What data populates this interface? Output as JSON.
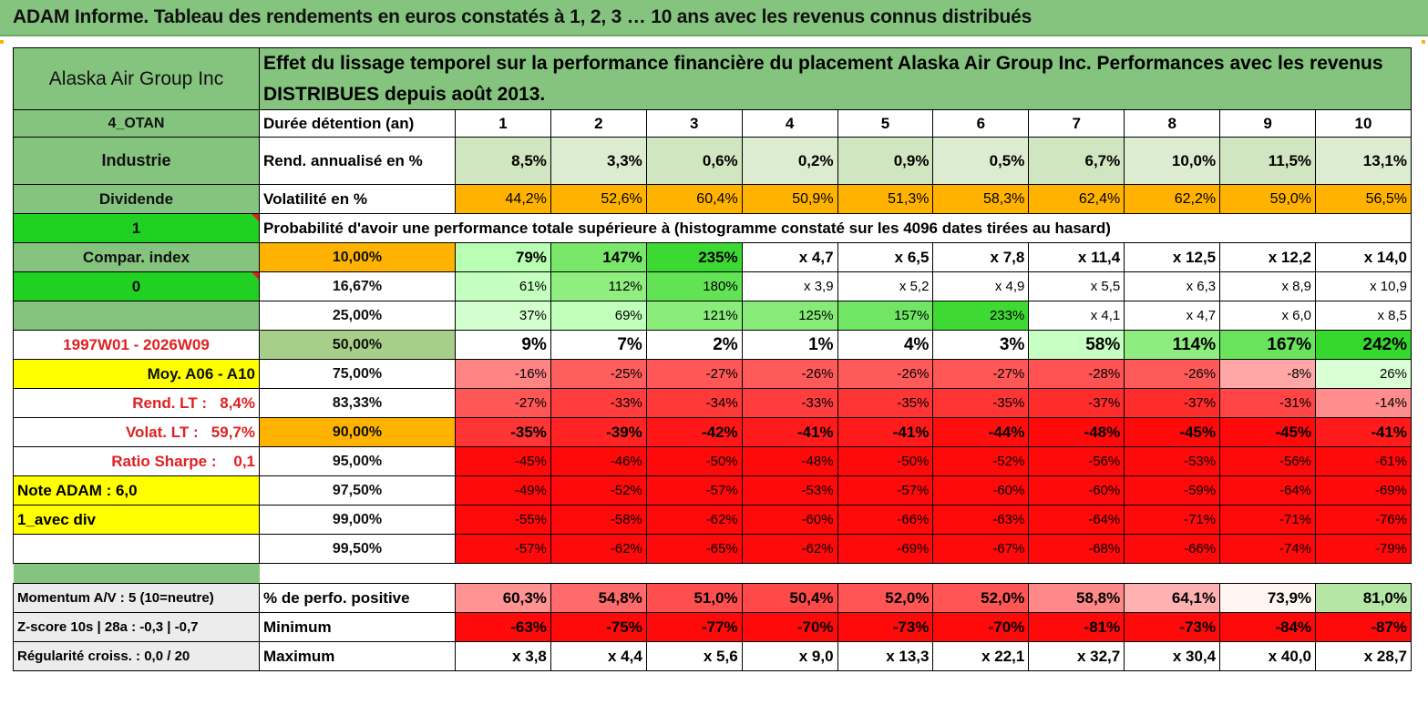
{
  "page_title": "ADAM Informe. Tableau des rendements en euros constatés à 1, 2, 3 … 10 ans avec les revenus connus distribués",
  "header": {
    "company": "Alaska Air Group Inc",
    "description": "Effet du lissage temporel sur la performance financière du placement Alaska Air Group Inc. Performances avec les revenus DISTRIBUES depuis août 2013."
  },
  "years_row": {
    "left": "4_OTAN",
    "label": "Durée détention (an)",
    "values": [
      "1",
      "2",
      "3",
      "4",
      "5",
      "6",
      "7",
      "8",
      "9",
      "10"
    ]
  },
  "rend_row": {
    "left": "Industrie",
    "label": "Rend. annualisé en %",
    "values": [
      "8,5%",
      "3,3%",
      "0,6%",
      "0,2%",
      "0,9%",
      "0,5%",
      "6,7%",
      "10,0%",
      "11,5%",
      "13,1%"
    ]
  },
  "vol_row": {
    "left": "Dividende",
    "label": "Volatilité en %",
    "values": [
      "44,2%",
      "52,6%",
      "60,4%",
      "50,9%",
      "51,3%",
      "58,3%",
      "62,4%",
      "62,2%",
      "59,0%",
      "56,5%"
    ]
  },
  "prob_row": {
    "left": "1",
    "label": "Probabilité d'avoir une performance totale supérieure à (histogramme constaté sur les 4096 dates tirées au hasard)"
  },
  "quantiles": [
    {
      "left": "Compar. index",
      "pct": "10,00%",
      "values": [
        "79%",
        "147%",
        "235%",
        "x 4,7",
        "x 6,5",
        "x 7,8",
        "x 11,4",
        "x 12,5",
        "x 12,2",
        "x 14,0"
      ]
    },
    {
      "left": "0",
      "pct": "16,67%",
      "values": [
        "61%",
        "112%",
        "180%",
        "x 3,9",
        "x 5,2",
        "x 4,9",
        "x 5,5",
        "x 6,3",
        "x 8,9",
        "x 10,9"
      ]
    },
    {
      "left": "",
      "pct": "25,00%",
      "values": [
        "37%",
        "69%",
        "121%",
        "125%",
        "157%",
        "233%",
        "x 4,1",
        "x 4,7",
        "x 6,0",
        "x 8,5"
      ]
    },
    {
      "left": "1997W01 - 2026W09",
      "pct": "50,00%",
      "values": [
        "9%",
        "7%",
        "2%",
        "1%",
        "4%",
        "3%",
        "58%",
        "114%",
        "167%",
        "242%"
      ]
    },
    {
      "left": "Moy. A06 - A10",
      "pct": "75,00%",
      "values": [
        "-16%",
        "-25%",
        "-27%",
        "-26%",
        "-26%",
        "-27%",
        "-28%",
        "-26%",
        "-8%",
        "26%"
      ]
    },
    {
      "left": "Rend. LT :   8,4%",
      "pct": "83,33%",
      "values": [
        "-27%",
        "-33%",
        "-34%",
        "-33%",
        "-35%",
        "-35%",
        "-37%",
        "-37%",
        "-31%",
        "-14%"
      ]
    },
    {
      "left": "Volat. LT :   59,7%",
      "pct": "90,00%",
      "values": [
        "-35%",
        "-39%",
        "-42%",
        "-41%",
        "-41%",
        "-44%",
        "-48%",
        "-45%",
        "-45%",
        "-41%"
      ]
    },
    {
      "left": "Ratio Sharpe :    0,1",
      "pct": "95,00%",
      "values": [
        "-45%",
        "-46%",
        "-50%",
        "-48%",
        "-50%",
        "-52%",
        "-56%",
        "-53%",
        "-56%",
        "-61%"
      ]
    },
    {
      "left": "Note ADAM : 6,0",
      "pct": "97,50%",
      "values": [
        "-49%",
        "-52%",
        "-57%",
        "-53%",
        "-57%",
        "-60%",
        "-60%",
        "-59%",
        "-64%",
        "-69%"
      ]
    },
    {
      "left": "1_avec div",
      "pct": "99,00%",
      "values": [
        "-55%",
        "-58%",
        "-62%",
        "-60%",
        "-66%",
        "-63%",
        "-64%",
        "-71%",
        "-71%",
        "-76%"
      ]
    },
    {
      "left": "",
      "pct": "99,50%",
      "values": [
        "-57%",
        "-62%",
        "-65%",
        "-62%",
        "-69%",
        "-67%",
        "-68%",
        "-66%",
        "-74%",
        "-79%"
      ]
    }
  ],
  "bottom": [
    {
      "left": "Momentum A/V : 5 (10=neutre)",
      "label": "% de perfo. positive",
      "values": [
        "60,3%",
        "54,8%",
        "51,0%",
        "50,4%",
        "52,0%",
        "52,0%",
        "58,8%",
        "64,1%",
        "73,9%",
        "81,0%"
      ]
    },
    {
      "left": "Z-score 10s | 28a : -0,3 | -0,7",
      "label": "Minimum",
      "values": [
        "-63%",
        "-75%",
        "-77%",
        "-70%",
        "-73%",
        "-70%",
        "-81%",
        "-73%",
        "-84%",
        "-87%"
      ]
    },
    {
      "left": "Régularité croiss. : 0,0 / 20",
      "label": "Maximum",
      "values": [
        "x 3,8",
        "x 4,4",
        "x 5,6",
        "x 9,0",
        "x 13,3",
        "x 22,1",
        "x 32,7",
        "x 30,4",
        "x 40,0",
        "x 28,7"
      ]
    }
  ],
  "colors": {
    "header_green": "#85c47e",
    "lime": "#21d121",
    "yellow": "#ffff00",
    "orange": "#ffb300",
    "rend_fill": "#d2e8c4",
    "red_text": "#e02020"
  }
}
